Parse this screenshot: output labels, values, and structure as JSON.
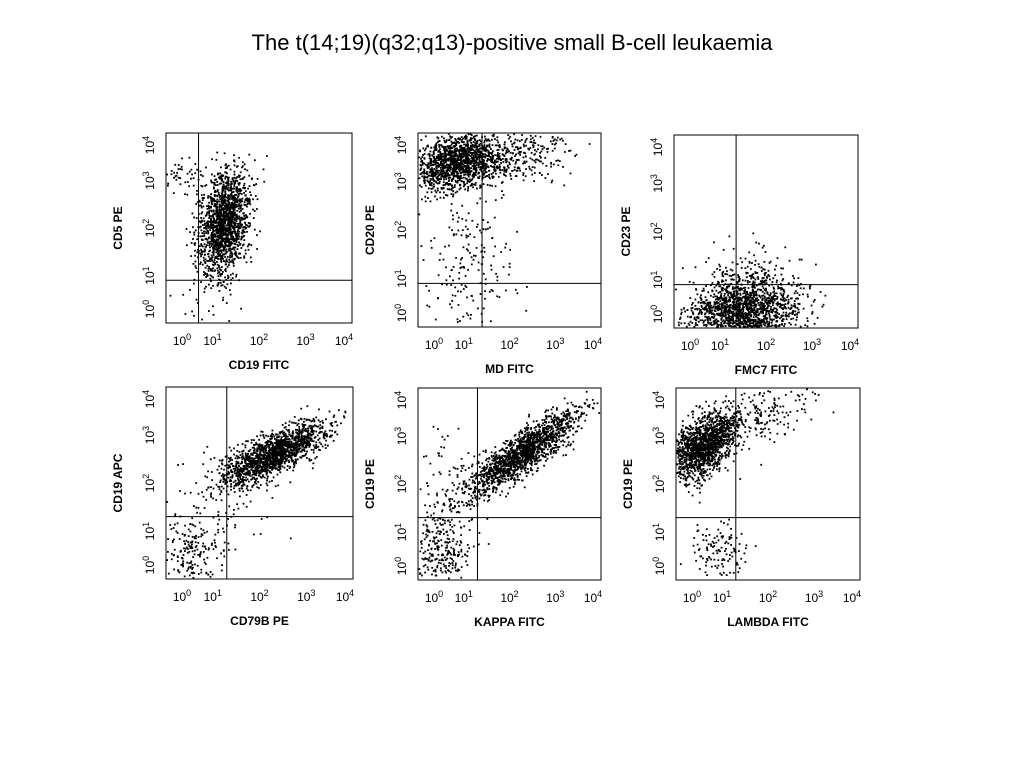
{
  "title": "The t(14;19)(q32;q13)-positive small B-cell leukaemia",
  "colors": {
    "dots": "#000000",
    "frame": "#000000",
    "background": "#ffffff"
  },
  "chart_data": [
    {
      "type": "scatter",
      "xlabel": "CD19 FITC",
      "ylabel": "CD5 PE",
      "xlim": [
        0,
        4
      ],
      "ylim": [
        0,
        4
      ],
      "axis_scale": "log10",
      "x_ticks": [
        "10^0",
        "10^1",
        "10^2",
        "10^3",
        "10^4"
      ],
      "y_ticks": [
        "10^0",
        "10^1",
        "10^2",
        "10^3",
        "10^4"
      ],
      "quadrant_x": 0.7,
      "quadrant_y": 0.9,
      "clusters": [
        {
          "cx": 1.25,
          "cy": 2.1,
          "sx": 0.27,
          "sy": 0.55,
          "rho": 0.3,
          "n": 1600
        },
        {
          "cx": 0.3,
          "cy": 3.1,
          "sx": 0.35,
          "sy": 0.18,
          "rho": 0.0,
          "n": 60
        },
        {
          "cx": 0.9,
          "cy": 0.6,
          "sx": 0.4,
          "sy": 0.35,
          "rho": 0.0,
          "n": 25
        }
      ]
    },
    {
      "type": "scatter",
      "xlabel": "MD FITC",
      "ylabel": "CD20 PE",
      "xlim": [
        0,
        4
      ],
      "ylim": [
        0,
        4
      ],
      "axis_scale": "log10",
      "x_ticks": [
        "10^0",
        "10^1",
        "10^2",
        "10^3",
        "10^4"
      ],
      "y_ticks": [
        "10^0",
        "10^1",
        "10^2",
        "10^3",
        "10^4"
      ],
      "quadrant_x": 1.4,
      "quadrant_y": 0.9,
      "clusters": [
        {
          "cx": 0.9,
          "cy": 3.4,
          "sx": 0.55,
          "sy": 0.28,
          "rho": 0.3,
          "n": 1500
        },
        {
          "cx": 2.2,
          "cy": 3.5,
          "sx": 0.7,
          "sy": 0.35,
          "rho": 0.4,
          "n": 250
        },
        {
          "cx": 1.1,
          "cy": 1.2,
          "sx": 0.45,
          "sy": 0.75,
          "rho": 0.0,
          "n": 180
        }
      ]
    },
    {
      "type": "scatter",
      "xlabel": "FMC7 FITC",
      "ylabel": "CD23 PE",
      "xlim": [
        0,
        4
      ],
      "ylim": [
        0,
        4
      ],
      "axis_scale": "log10",
      "x_ticks": [
        "10^0",
        "10^1",
        "10^2",
        "10^3",
        "10^4"
      ],
      "y_ticks": [
        "10^0",
        "10^1",
        "10^2",
        "10^3",
        "10^4"
      ],
      "quadrant_x": 1.35,
      "quadrant_y": 0.9,
      "clusters": [
        {
          "cx": 1.5,
          "cy": 0.3,
          "sx": 0.6,
          "sy": 0.35,
          "rho": 0.1,
          "n": 1700
        },
        {
          "cx": 1.7,
          "cy": 1.0,
          "sx": 0.55,
          "sy": 0.35,
          "rho": 0.0,
          "n": 150
        }
      ]
    },
    {
      "type": "scatter",
      "xlabel": "CD79B PE",
      "ylabel": "CD19 APC",
      "xlim": [
        0,
        4
      ],
      "ylim": [
        0,
        4
      ],
      "axis_scale": "log10",
      "x_ticks": [
        "10^0",
        "10^1",
        "10^2",
        "10^3",
        "10^4"
      ],
      "y_ticks": [
        "10^0",
        "10^1",
        "10^2",
        "10^3",
        "10^4"
      ],
      "quadrant_x": 1.3,
      "quadrant_y": 1.3,
      "clusters": [
        {
          "cx": 2.3,
          "cy": 2.6,
          "sx": 0.55,
          "sy": 0.32,
          "rho": 0.75,
          "n": 1600
        },
        {
          "cx": 0.5,
          "cy": 0.55,
          "sx": 0.4,
          "sy": 0.35,
          "rho": 0.0,
          "n": 220
        },
        {
          "cx": 1.3,
          "cy": 1.6,
          "sx": 0.6,
          "sy": 0.5,
          "rho": 0.0,
          "n": 60
        }
      ]
    },
    {
      "type": "scatter",
      "xlabel": "KAPPA FITC",
      "ylabel": "CD19 PE",
      "xlim": [
        0,
        4
      ],
      "ylim": [
        0,
        4
      ],
      "axis_scale": "log10",
      "x_ticks": [
        "10^0",
        "10^1",
        "10^2",
        "10^3",
        "10^4"
      ],
      "y_ticks": [
        "10^0",
        "10^1",
        "10^2",
        "10^3",
        "10^4"
      ],
      "quadrant_x": 1.3,
      "quadrant_y": 1.3,
      "clusters": [
        {
          "cx": 2.3,
          "cy": 2.65,
          "sx": 0.6,
          "sy": 0.45,
          "rho": 0.85,
          "n": 1600
        },
        {
          "cx": 0.5,
          "cy": 0.6,
          "sx": 0.3,
          "sy": 0.4,
          "rho": 0.0,
          "n": 250
        },
        {
          "cx": 0.6,
          "cy": 1.8,
          "sx": 0.45,
          "sy": 0.6,
          "rho": 0.0,
          "n": 100
        }
      ]
    },
    {
      "type": "scatter",
      "xlabel": "LAMBDA FITC",
      "ylabel": "CD19 PE",
      "xlim": [
        0,
        4
      ],
      "ylim": [
        0,
        4
      ],
      "axis_scale": "log10",
      "x_ticks": [
        "10^0",
        "10^1",
        "10^2",
        "10^3",
        "10^4"
      ],
      "y_ticks": [
        "10^0",
        "10^1",
        "10^2",
        "10^3",
        "10^4"
      ],
      "quadrant_x": 1.3,
      "quadrant_y": 1.3,
      "clusters": [
        {
          "cx": 0.6,
          "cy": 2.8,
          "sx": 0.35,
          "sy": 0.35,
          "rho": 0.5,
          "n": 1500
        },
        {
          "cx": 1.8,
          "cy": 3.4,
          "sx": 0.6,
          "sy": 0.35,
          "rho": 0.6,
          "n": 200
        },
        {
          "cx": 0.9,
          "cy": 0.6,
          "sx": 0.3,
          "sy": 0.35,
          "rho": 0.0,
          "n": 120
        }
      ]
    }
  ]
}
